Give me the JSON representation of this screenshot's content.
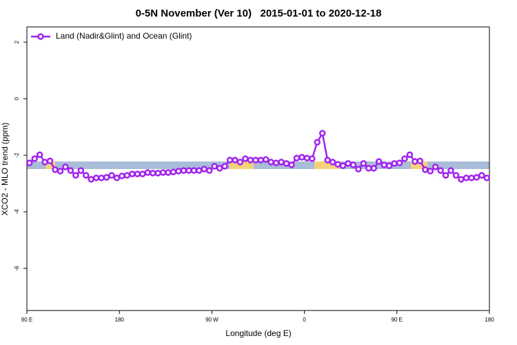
{
  "chart_data": {
    "type": "line",
    "title": "0-5N November (Ver 10)   2015-01-01 to 2020-12-18",
    "x_label": "Longitude (deg E)",
    "y_label": "XCO2 - MLO trend (ppm)",
    "xlim": [
      90,
      540
    ],
    "ylim": [
      -7.49,
      2.54
    ],
    "xticks": [
      {
        "value": 90,
        "label": "90 E"
      },
      180,
      {
        "value": 270,
        "label": "90 W"
      },
      {
        "value": 360,
        "label": "0"
      },
      {
        "value": 450,
        "label": "90 E"
      },
      {
        "value": 540,
        "label": "180"
      }
    ],
    "yticks": [
      2,
      0,
      -2,
      -4,
      -6
    ],
    "legend": "top-left",
    "x": [
      92.5,
      97.5,
      102.5,
      107.5,
      112.5,
      117.5,
      122.5,
      127.5,
      132.5,
      137.5,
      142.5,
      147.5,
      152.5,
      157.5,
      162.5,
      167.5,
      172.5,
      177.5,
      182.5,
      187.5,
      192.5,
      197.5,
      202.5,
      207.5,
      212.5,
      217.5,
      222.5,
      227.5,
      232.5,
      237.5,
      242.5,
      247.5,
      252.5,
      257.5,
      262.5,
      267.5,
      272.5,
      277.5,
      282.5,
      287.5,
      292.5,
      297.5,
      302.5,
      307.5,
      312.5,
      317.5,
      322.5,
      327.5,
      332.5,
      337.5,
      342.5,
      347.5,
      352.5,
      357.5,
      362.5,
      367.5,
      372.5,
      377.5,
      382.5,
      387.5,
      392.5,
      397.5,
      402.5,
      407.5,
      412.5,
      417.5,
      422.5,
      427.5,
      432.5,
      437.5,
      442.5,
      447.5,
      452.5,
      457.5,
      462.5,
      467.5,
      472.5,
      477.5,
      482.5,
      487.5,
      492.5,
      497.5,
      502.5,
      507.5,
      512.5,
      517.5,
      522.5,
      527.5,
      532.5,
      537.5
    ],
    "series": [
      {
        "name": "Land (Nadir&Glint) and Ocean (Glint)",
        "color": "#a020f0",
        "values": [
          -2.27,
          -2.12,
          -1.98,
          -2.24,
          -2.2,
          -2.51,
          -2.56,
          -2.41,
          -2.54,
          -2.71,
          -2.54,
          -2.71,
          -2.85,
          -2.8,
          -2.8,
          -2.78,
          -2.71,
          -2.8,
          -2.73,
          -2.71,
          -2.66,
          -2.66,
          -2.66,
          -2.61,
          -2.63,
          -2.63,
          -2.61,
          -2.61,
          -2.59,
          -2.56,
          -2.54,
          -2.54,
          -2.54,
          -2.54,
          -2.49,
          -2.54,
          -2.39,
          -2.46,
          -2.39,
          -2.17,
          -2.17,
          -2.24,
          -2.12,
          -2.17,
          -2.17,
          -2.17,
          -2.15,
          -2.24,
          -2.27,
          -2.24,
          -2.29,
          -2.34,
          -2.1,
          -2.07,
          -2.1,
          -2.12,
          -1.54,
          -1.22,
          -2.17,
          -2.24,
          -2.32,
          -2.37,
          -2.29,
          -2.34,
          -2.49,
          -2.29,
          -2.46,
          -2.46,
          -2.22,
          -2.34,
          -2.37,
          -2.29,
          -2.27,
          -2.12,
          -1.98,
          -2.22,
          -2.2,
          -2.51,
          -2.56,
          -2.41,
          -2.54,
          -2.71,
          -2.54,
          -2.71,
          -2.85,
          -2.8,
          -2.8,
          -2.78,
          -2.71,
          -2.8
        ]
      }
    ]
  }
}
